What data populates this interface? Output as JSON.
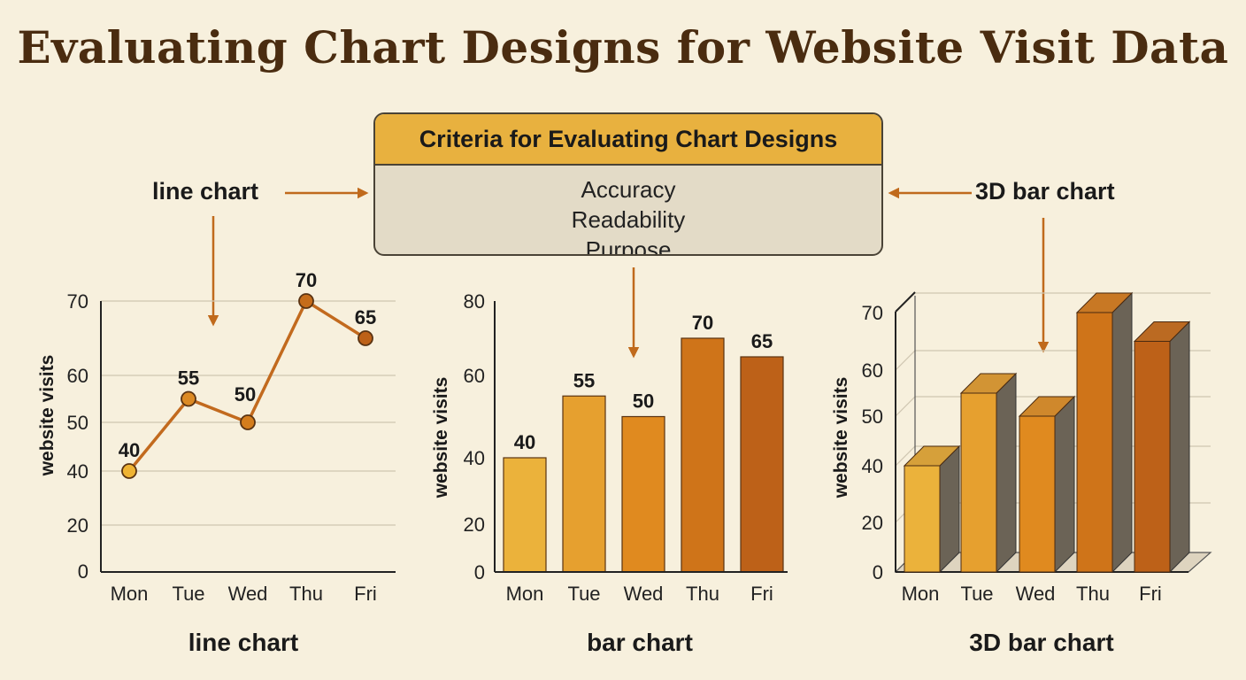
{
  "page_title": "Evaluating Chart Designs for Website Visit Data",
  "criteria": {
    "title": "Criteria for Evaluating Chart Designs",
    "items": [
      "Accuracy",
      "Readability",
      "Purpose"
    ]
  },
  "labels": {
    "left": "line chart",
    "right": "3D bar chart"
  },
  "colors": {
    "arrow": "#c06a1c",
    "line": "#c26a1e",
    "bar_fills": [
      "#ebb23b",
      "#e6a02f",
      "#e08a1f",
      "#cf7419",
      "#bd6118"
    ],
    "bar_side": "#6b6356",
    "grid": "#cfc6b1",
    "axis": "#222222"
  },
  "chart_data": [
    {
      "type": "line",
      "caption": "line chart",
      "categories": [
        "Mon",
        "Tue",
        "Wed",
        "Thu",
        "Fri"
      ],
      "values": [
        40,
        55,
        50,
        70,
        65
      ],
      "data_labels": [
        "40",
        "55",
        "50",
        "70",
        "65"
      ],
      "ylabel": "website visits",
      "yticks": [
        0,
        20,
        40,
        50,
        60,
        70
      ],
      "grid": true
    },
    {
      "type": "bar",
      "caption": "bar chart",
      "categories": [
        "Mon",
        "Tue",
        "Wed",
        "Thu",
        "Fri"
      ],
      "values": [
        40,
        55,
        50,
        70,
        65
      ],
      "data_labels": [
        "40",
        "55",
        "50",
        "70",
        "65"
      ],
      "ylabel": "website visits",
      "yticks": [
        0,
        20,
        40,
        60,
        80
      ],
      "grid": false
    },
    {
      "type": "bar",
      "style": "3d",
      "caption": "3D bar chart",
      "categories": [
        "Mon",
        "Tue",
        "Wed",
        "Thu",
        "Fri"
      ],
      "values": [
        40,
        55,
        50,
        70,
        65
      ],
      "ylabel": "website visits",
      "yticks": [
        0,
        20,
        40,
        50,
        60,
        70
      ],
      "grid": true
    }
  ]
}
